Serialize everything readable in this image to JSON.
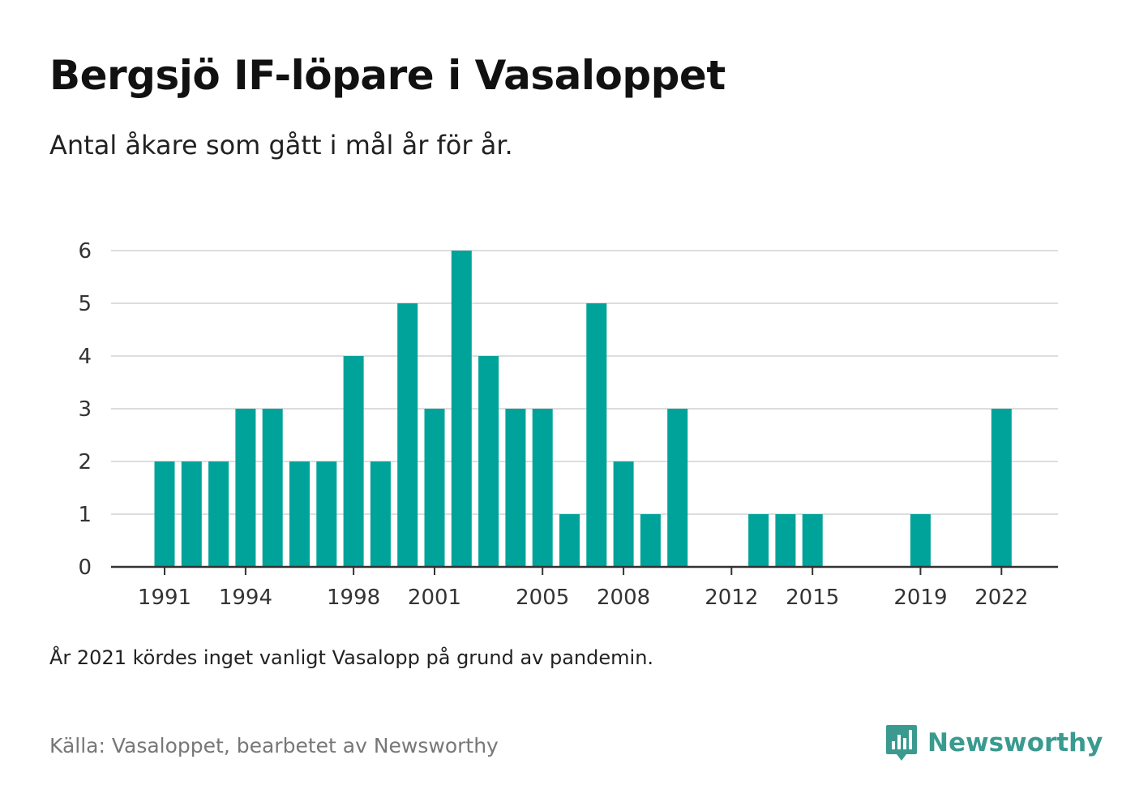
{
  "chart_data": {
    "type": "bar",
    "title": "Bergsjö IF-löpare i Vasaloppet",
    "subtitle": "Antal åkare som gått i mål år för år.",
    "xlabel": "",
    "ylabel": "",
    "x": [
      1991,
      1992,
      1993,
      1994,
      1995,
      1996,
      1997,
      1998,
      1999,
      2000,
      2001,
      2002,
      2003,
      2004,
      2005,
      2006,
      2007,
      2008,
      2009,
      2010,
      2011,
      2012,
      2013,
      2014,
      2015,
      2016,
      2017,
      2018,
      2019,
      2020,
      2021,
      2022
    ],
    "values": [
      2,
      2,
      2,
      3,
      3,
      2,
      2,
      4,
      2,
      5,
      3,
      6,
      4,
      3,
      3,
      1,
      5,
      2,
      1,
      3,
      0,
      0,
      1,
      1,
      1,
      0,
      0,
      0,
      1,
      0,
      0,
      3
    ],
    "x_tick_labels": [
      "1991",
      "1994",
      "1998",
      "2001",
      "2005",
      "2008",
      "2012",
      "2015",
      "2019",
      "2022"
    ],
    "y_tick_labels": [
      "0",
      "1",
      "2",
      "3",
      "4",
      "5",
      "6"
    ],
    "ylim": [
      0,
      6
    ],
    "grid": true,
    "legend": "none",
    "bar_color": "#00a39a"
  },
  "note": "År 2021 kördes inget vanligt Vasalopp på grund av pandemin.",
  "source": "Källa: Vasaloppet, bearbetet av Newsworthy",
  "logo": {
    "name": "Newsworthy",
    "icon": "newsworthy-logo-icon",
    "color": "#3a9a8f"
  }
}
